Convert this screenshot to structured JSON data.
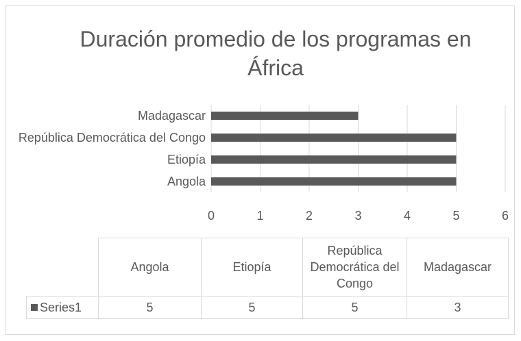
{
  "chart_data": {
    "type": "bar",
    "orientation": "horizontal",
    "title": "Duración promedio de los programas en África",
    "categories": [
      "Angola",
      "Etiopía",
      "República Democrática del Congo",
      "Madagascar"
    ],
    "series": [
      {
        "name": "Series1",
        "color": "#595959",
        "values": [
          5,
          5,
          5,
          3
        ]
      }
    ],
    "xlim": [
      0,
      6
    ],
    "xticks": [
      0,
      1,
      2,
      3,
      4,
      5,
      6
    ],
    "grid": true,
    "data_table": true
  }
}
